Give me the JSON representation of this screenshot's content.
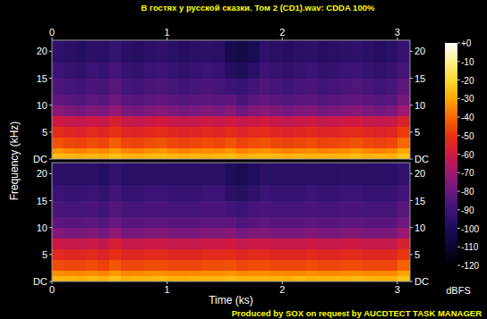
{
  "chart_data": {
    "type": "heatmap",
    "title": "В гостях у русской сказки. Том 2 (CD1).wav: CDDA 100%",
    "x_label": "Time (ks)",
    "y_label": "Frequency (kHz)",
    "annotations": [
      "Produced by SOX on request by AUCDTECT TASK MANAGER"
    ],
    "xlim": [
      0,
      3.11
    ],
    "xticks": [
      0,
      1,
      2,
      3
    ],
    "ylim": [
      0,
      22.05
    ],
    "yticks": [
      {
        "value": 0,
        "label": "DC"
      },
      5,
      10,
      15,
      20
    ],
    "x_bins": [
      0,
      0.1,
      0.2,
      0.3,
      0.4,
      0.5,
      0.6,
      0.7,
      0.8,
      0.9,
      1.0,
      1.1,
      1.2,
      1.3,
      1.4,
      1.5,
      1.6,
      1.7,
      1.8,
      1.9,
      2.0,
      2.1,
      2.2,
      2.3,
      2.4,
      2.5,
      2.6,
      2.7,
      2.8,
      2.9,
      3.0,
      3.11
    ],
    "y_bins": [
      0,
      1,
      2,
      4,
      6,
      8,
      10,
      12,
      15,
      18,
      22.05
    ],
    "color_label": "dBFS",
    "color_range": [
      -120,
      0
    ],
    "color_ticks": [
      {
        "value": 0,
        "label": "+0"
      },
      -10,
      -20,
      -30,
      -40,
      -50,
      -60,
      -70,
      -80,
      -90,
      -100,
      -110,
      -120
    ],
    "channels": [
      {
        "cells": [
          [
            -26,
            -27,
            -28,
            -27,
            -28,
            -25,
            -27,
            -28,
            -27,
            -26,
            -27,
            -28,
            -27,
            -28,
            -27,
            -26,
            -28,
            -27,
            -26,
            -27,
            -28,
            -27,
            -28,
            -27,
            -28,
            -27,
            -26,
            -28,
            -27,
            -28,
            -24
          ],
          [
            -33,
            -35,
            -36,
            -34,
            -35,
            -32,
            -35,
            -36,
            -34,
            -33,
            -35,
            -36,
            -35,
            -34,
            -35,
            -33,
            -36,
            -34,
            -33,
            -35,
            -36,
            -35,
            -34,
            -36,
            -35,
            -34,
            -33,
            -35,
            -36,
            -35,
            -30
          ],
          [
            -44,
            -46,
            -47,
            -45,
            -46,
            -42,
            -46,
            -47,
            -45,
            -44,
            -46,
            -47,
            -46,
            -45,
            -46,
            -44,
            -47,
            -45,
            -44,
            -46,
            -47,
            -46,
            -45,
            -47,
            -46,
            -45,
            -44,
            -46,
            -47,
            -46,
            -40
          ],
          [
            -52,
            -54,
            -55,
            -53,
            -54,
            -50,
            -54,
            -55,
            -53,
            -52,
            -54,
            -55,
            -54,
            -53,
            -54,
            -52,
            -55,
            -53,
            -52,
            -54,
            -55,
            -54,
            -53,
            -55,
            -54,
            -53,
            -52,
            -54,
            -55,
            -54,
            -48
          ],
          [
            -60,
            -62,
            -63,
            -61,
            -62,
            -57,
            -62,
            -63,
            -61,
            -60,
            -62,
            -63,
            -62,
            -61,
            -62,
            -60,
            -63,
            -61,
            -60,
            -62,
            -63,
            -62,
            -61,
            -63,
            -62,
            -61,
            -60,
            -62,
            -63,
            -62,
            -56
          ],
          [
            -74,
            -77,
            -78,
            -76,
            -77,
            -72,
            -77,
            -78,
            -76,
            -75,
            -77,
            -78,
            -77,
            -76,
            -77,
            -75,
            -79,
            -76,
            -75,
            -77,
            -78,
            -77,
            -76,
            -78,
            -77,
            -76,
            -75,
            -77,
            -78,
            -77,
            -70
          ],
          [
            -82,
            -84,
            -85,
            -83,
            -84,
            -80,
            -84,
            -85,
            -83,
            -82,
            -84,
            -85,
            -84,
            -83,
            -84,
            -83,
            -87,
            -84,
            -82,
            -84,
            -85,
            -84,
            -83,
            -85,
            -84,
            -83,
            -82,
            -84,
            -85,
            -84,
            -78
          ],
          [
            -86,
            -88,
            -89,
            -87,
            -88,
            -84,
            -88,
            -89,
            -87,
            -86,
            -88,
            -89,
            -88,
            -87,
            -88,
            -90,
            -92,
            -89,
            -86,
            -88,
            -89,
            -88,
            -87,
            -89,
            -88,
            -87,
            -86,
            -88,
            -89,
            -88,
            -83
          ],
          [
            -90,
            -92,
            -93,
            -91,
            -92,
            -88,
            -92,
            -93,
            -91,
            -90,
            -92,
            -93,
            -92,
            -91,
            -92,
            -97,
            -99,
            -96,
            -90,
            -92,
            -93,
            -92,
            -91,
            -93,
            -92,
            -91,
            -90,
            -92,
            -93,
            -92,
            -88
          ],
          [
            -94,
            -96,
            -97,
            -95,
            -96,
            -92,
            -96,
            -97,
            -95,
            -94,
            -96,
            -97,
            -96,
            -95,
            -96,
            -102,
            -104,
            -101,
            -94,
            -96,
            -97,
            -96,
            -95,
            -97,
            -96,
            -95,
            -94,
            -96,
            -97,
            -96,
            -92
          ]
        ]
      },
      {
        "cells": [
          [
            -27,
            -27,
            -28,
            -26,
            -28,
            -25,
            -28,
            -27,
            -27,
            -26,
            -28,
            -28,
            -27,
            -27,
            -27,
            -26,
            -27,
            -27,
            -27,
            -27,
            -28,
            -26,
            -28,
            -27,
            -27,
            -27,
            -26,
            -27,
            -28,
            -28,
            -24
          ],
          [
            -34,
            -35,
            -35,
            -34,
            -36,
            -32,
            -35,
            -35,
            -34,
            -34,
            -35,
            -35,
            -35,
            -34,
            -34,
            -33,
            -35,
            -34,
            -34,
            -35,
            -35,
            -35,
            -34,
            -35,
            -35,
            -34,
            -34,
            -35,
            -35,
            -35,
            -31
          ],
          [
            -45,
            -46,
            -46,
            -45,
            -47,
            -43,
            -46,
            -46,
            -45,
            -45,
            -46,
            -46,
            -46,
            -45,
            -45,
            -44,
            -46,
            -45,
            -45,
            -46,
            -46,
            -46,
            -45,
            -46,
            -46,
            -45,
            -45,
            -46,
            -46,
            -46,
            -41
          ],
          [
            -53,
            -54,
            -54,
            -53,
            -55,
            -51,
            -54,
            -54,
            -53,
            -53,
            -54,
            -54,
            -54,
            -53,
            -53,
            -52,
            -54,
            -53,
            -53,
            -54,
            -54,
            -54,
            -53,
            -54,
            -54,
            -53,
            -53,
            -54,
            -54,
            -54,
            -49
          ],
          [
            -61,
            -62,
            -62,
            -61,
            -63,
            -58,
            -62,
            -62,
            -61,
            -61,
            -62,
            -62,
            -62,
            -61,
            -61,
            -60,
            -62,
            -61,
            -61,
            -62,
            -62,
            -62,
            -61,
            -62,
            -62,
            -61,
            -61,
            -62,
            -62,
            -62,
            -57
          ],
          [
            -75,
            -77,
            -77,
            -76,
            -78,
            -73,
            -77,
            -77,
            -76,
            -76,
            -77,
            -77,
            -77,
            -76,
            -76,
            -75,
            -78,
            -76,
            -76,
            -77,
            -77,
            -77,
            -76,
            -77,
            -77,
            -76,
            -76,
            -77,
            -77,
            -77,
            -71
          ],
          [
            -83,
            -84,
            -84,
            -83,
            -85,
            -81,
            -84,
            -84,
            -83,
            -83,
            -84,
            -84,
            -84,
            -83,
            -83,
            -83,
            -86,
            -84,
            -83,
            -84,
            -84,
            -84,
            -83,
            -84,
            -84,
            -83,
            -83,
            -84,
            -84,
            -84,
            -79
          ],
          [
            -87,
            -88,
            -88,
            -87,
            -89,
            -85,
            -88,
            -88,
            -87,
            -87,
            -88,
            -88,
            -88,
            -87,
            -87,
            -89,
            -91,
            -88,
            -87,
            -88,
            -88,
            -88,
            -87,
            -88,
            -88,
            -87,
            -87,
            -88,
            -88,
            -88,
            -84
          ],
          [
            -91,
            -92,
            -92,
            -91,
            -93,
            -89,
            -92,
            -92,
            -91,
            -91,
            -92,
            -92,
            -92,
            -91,
            -91,
            -95,
            -97,
            -94,
            -91,
            -92,
            -92,
            -92,
            -91,
            -92,
            -92,
            -91,
            -91,
            -92,
            -92,
            -92,
            -89
          ],
          [
            -95,
            -96,
            -96,
            -95,
            -97,
            -93,
            -96,
            -96,
            -95,
            -95,
            -96,
            -96,
            -96,
            -95,
            -95,
            -99,
            -101,
            -98,
            -95,
            -96,
            -96,
            -96,
            -95,
            -96,
            -96,
            -95,
            -95,
            -96,
            -96,
            -96,
            -93
          ]
        ]
      }
    ]
  }
}
